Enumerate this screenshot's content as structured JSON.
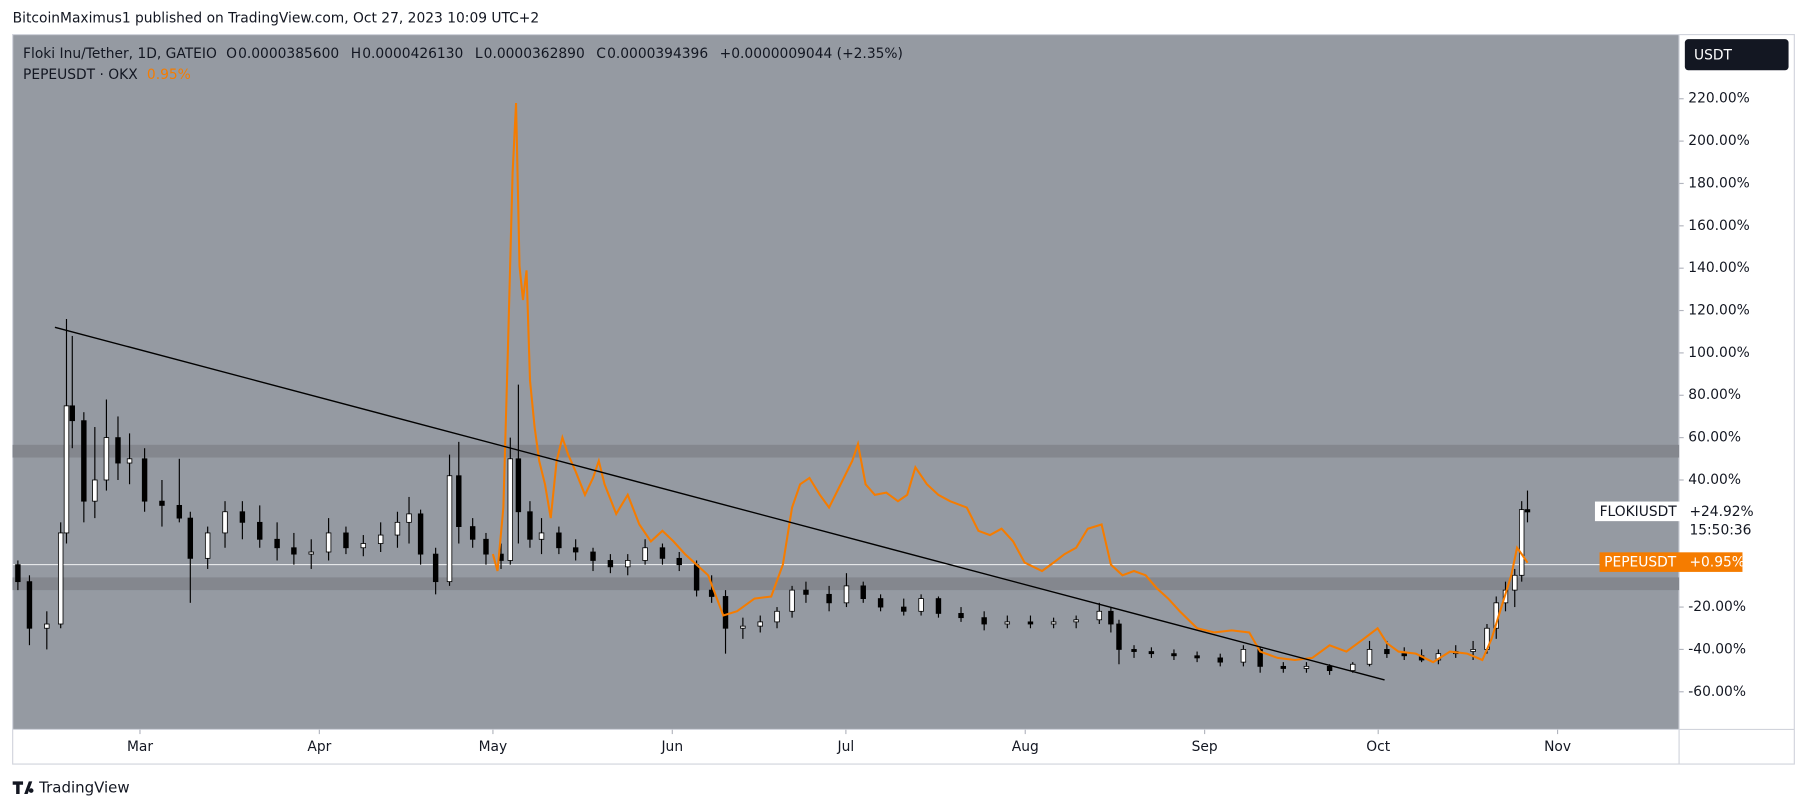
{
  "header": "BitcoinMaximus1 published on TradingView.com, Oct 27, 2023 10:09 UTC+2",
  "footer": "TradingView",
  "chart_data": {
    "type": "candlestick",
    "currency": "USDT",
    "legend": {
      "symbol": "Floki Inu/Tether, 1D, GATEIO",
      "items": [
        [
          "O",
          "0.0000385600"
        ],
        [
          "H",
          "0.0000426130"
        ],
        [
          "L",
          "0.0000362890"
        ],
        [
          "C",
          "0.0000394396"
        ]
      ],
      "change": "+0.0000009044 (+2.35%)",
      "compare": "PEPEUSDT · OKX",
      "compare_change": "0.95%"
    },
    "xlim": [
      38,
      326
    ],
    "xticks": [
      {
        "value": 60,
        "label": "Mar"
      },
      {
        "value": 91,
        "label": "Apr"
      },
      {
        "value": 121,
        "label": "May"
      },
      {
        "value": 152,
        "label": "Jun"
      },
      {
        "value": 182,
        "label": "Jul"
      },
      {
        "value": 213,
        "label": "Aug"
      },
      {
        "value": 244,
        "label": "Sep"
      },
      {
        "value": 274,
        "label": "Oct"
      },
      {
        "value": 305,
        "label": "Nov"
      }
    ],
    "ylim": [
      -77.8,
      250.3
    ],
    "yticks": [
      {
        "value": -60,
        "label": "-60.00%"
      },
      {
        "value": -40,
        "label": "-40.00%"
      },
      {
        "value": -20,
        "label": "-20.00%"
      },
      {
        "value": 40,
        "label": "40.00%"
      },
      {
        "value": 60,
        "label": "60.00%"
      },
      {
        "value": 80,
        "label": "80.00%"
      },
      {
        "value": 100,
        "label": "100.00%"
      },
      {
        "value": 120,
        "label": "120.00%"
      },
      {
        "value": 140,
        "label": "140.00%"
      },
      {
        "value": 160,
        "label": "160.00%"
      },
      {
        "value": 180,
        "label": "180.00%"
      },
      {
        "value": 200,
        "label": "200.00%"
      },
      {
        "value": 220,
        "label": "220.00%"
      }
    ],
    "zones": [
      {
        "from": 50.6,
        "to": 56.6
      },
      {
        "from": -12,
        "to": -6
      }
    ],
    "trendline": {
      "x": [
        45.3,
        275.1
      ],
      "y": [
        112.1,
        -54.4
      ]
    },
    "series": [
      {
        "name": "FLOKIUSDT",
        "type": "candlestick",
        "up_color": "#ffffff",
        "down_color": "#000000",
        "last_label": "+24.92%",
        "countdown": "15:50:36",
        "x": [
          38.9,
          40.9,
          43.9,
          46.3,
          47.3,
          48.3,
          50.3,
          52.2,
          54.2,
          56.2,
          58.2,
          60.8,
          63.8,
          66.8,
          68.7,
          71.7,
          74.7,
          77.7,
          80.7,
          83.7,
          86.6,
          89.6,
          92.6,
          95.6,
          98.6,
          101.6,
          104.5,
          106.5,
          108.5,
          111.1,
          113.5,
          115.1,
          117.5,
          119.8,
          122.4,
          124.0,
          125.4,
          127.4,
          129.4,
          132.4,
          135.3,
          138.3,
          141.3,
          144.3,
          147.3,
          150.3,
          153.2,
          156.2,
          158.8,
          161.2,
          164.2,
          167.2,
          170.1,
          172.7,
          175.1,
          179.1,
          182.1,
          185.0,
          188.0,
          192.0,
          195.0,
          198.0,
          201.9,
          205.9,
          209.9,
          213.9,
          217.9,
          221.8,
          225.8,
          227.8,
          229.2,
          231.8,
          234.8,
          238.7,
          242.7,
          246.7,
          250.7,
          253.6,
          257.6,
          261.6,
          265.6,
          269.6,
          272.5,
          275.5,
          278.5,
          281.5,
          284.4,
          287.4,
          290.4,
          292.8,
          294.4,
          296.0,
          297.6,
          298.8,
          299.8
        ],
        "open": [
          0,
          -8,
          -30,
          -28,
          15,
          75,
          68,
          30,
          40,
          60,
          48,
          50,
          30,
          28,
          22,
          3,
          15,
          25,
          20,
          12,
          8,
          5,
          6,
          15,
          8,
          10,
          14,
          20,
          24,
          5,
          -8,
          42,
          18,
          12,
          5,
          2,
          50,
          25,
          12,
          15,
          8,
          6,
          2,
          -1,
          2,
          8,
          3,
          0,
          -12,
          -15,
          -30,
          -29,
          -27,
          -22,
          -12,
          -14,
          -18,
          -10,
          -16,
          -20,
          -22,
          -16,
          -23,
          -25,
          -28,
          -27,
          -28,
          -27,
          -26,
          -22,
          -28,
          -40,
          -41,
          -42,
          -43,
          -44,
          -46,
          -40,
          -48,
          -49,
          -48,
          -50,
          -47,
          -40,
          -42,
          -43,
          -45,
          -42,
          -41,
          -40,
          -30,
          -18,
          -12,
          -5,
          26
        ],
        "high": [
          2,
          -5,
          -22,
          20,
          116,
          108,
          72,
          65,
          78,
          70,
          62,
          55,
          40,
          50,
          25,
          18,
          30,
          30,
          28,
          20,
          15,
          12,
          22,
          18,
          14,
          20,
          25,
          32,
          26,
          8,
          52,
          58,
          22,
          15,
          10,
          60,
          85,
          30,
          22,
          18,
          12,
          8,
          5,
          5,
          12,
          10,
          6,
          2,
          -5,
          -12,
          -25,
          -24,
          -20,
          -10,
          -8,
          -10,
          -4,
          -8,
          -14,
          -16,
          -14,
          -15,
          -20,
          -22,
          -24,
          -24,
          -25,
          -24,
          -18,
          -20,
          -26,
          -38,
          -39,
          -40,
          -41,
          -42,
          -38,
          -39,
          -46,
          -46,
          -47,
          -46,
          -36,
          -36,
          -39,
          -40,
          -40,
          -38,
          -36,
          -28,
          -15,
          -8,
          -2,
          30,
          35
        ],
        "low": [
          -12,
          -38,
          -40,
          -30,
          10,
          55,
          20,
          22,
          35,
          40,
          38,
          25,
          18,
          20,
          -18,
          -2,
          8,
          12,
          8,
          2,
          0,
          -2,
          2,
          5,
          4,
          6,
          8,
          10,
          0,
          -14,
          -10,
          10,
          8,
          0,
          -2,
          0,
          10,
          8,
          5,
          5,
          2,
          -3,
          -4,
          -5,
          0,
          0,
          -3,
          -15,
          -18,
          -42,
          -35,
          -32,
          -30,
          -25,
          -18,
          -22,
          -20,
          -18,
          -22,
          -24,
          -24,
          -25,
          -27,
          -31,
          -30,
          -30,
          -30,
          -30,
          -28,
          -32,
          -47,
          -44,
          -44,
          -45,
          -46,
          -48,
          -48,
          -51,
          -51,
          -51,
          -52,
          -51,
          -48,
          -44,
          -45,
          -46,
          -47,
          -44,
          -45,
          -42,
          -35,
          -22,
          -20,
          -8,
          20
        ],
        "close": [
          -8,
          -30,
          -28,
          15,
          75,
          68,
          30,
          40,
          60,
          48,
          50,
          30,
          28,
          22,
          3,
          15,
          25,
          20,
          12,
          8,
          5,
          6,
          15,
          8,
          10,
          14,
          20,
          24,
          5,
          -8,
          42,
          18,
          12,
          5,
          2,
          50,
          25,
          12,
          15,
          8,
          6,
          2,
          -1,
          2,
          8,
          3,
          0,
          -12,
          -15,
          -30,
          -29,
          -27,
          -22,
          -12,
          -14,
          -18,
          -10,
          -16,
          -20,
          -22,
          -16,
          -23,
          -25,
          -28,
          -27,
          -28,
          -27,
          -26,
          -22,
          -28,
          -40,
          -41,
          -42,
          -43,
          -44,
          -46,
          -40,
          -48,
          -49,
          -48,
          -50,
          -47,
          -40,
          -42,
          -43,
          -45,
          -42,
          -41,
          -40,
          -30,
          -18,
          -12,
          -5,
          26,
          24.92
        ]
      },
      {
        "name": "PEPEUSDT",
        "type": "line",
        "color": "#f57c00",
        "last_label": "+0.95%",
        "x": [
          121,
          121.8,
          122.8,
          123.6,
          124.4,
          125,
          125.6,
          126.2,
          126.8,
          127.4,
          128.2,
          129,
          130,
          131,
          132,
          133,
          134,
          135.3,
          136.9,
          138.3,
          139.3,
          140.3,
          142.3,
          144.3,
          146.3,
          148.3,
          150.3,
          152.2,
          154.2,
          156.2,
          158.2,
          160.8,
          163.2,
          166.2,
          169.1,
          171.1,
          172.7,
          174.1,
          175.7,
          177.5,
          179.1,
          181.1,
          183.1,
          184.1,
          185.4,
          187,
          189,
          191,
          192.6,
          194,
          196,
          198,
          200,
          202.9,
          204.9,
          206.9,
          208.9,
          210.9,
          212.9,
          215.9,
          217.9,
          219.8,
          221.8,
          223.8,
          226.2,
          227.8,
          229.8,
          231.8,
          233.8,
          235.7,
          237.7,
          239.7,
          242.7,
          245.7,
          248.7,
          251.7,
          253.6,
          256.6,
          259.6,
          262.6,
          265.6,
          268.5,
          271.5,
          273.9,
          275.5,
          277.5,
          280.5,
          283.5,
          286.4,
          289.4,
          292,
          293.6,
          295.4,
          297,
          298,
          298.8,
          299.8
        ],
        "values": [
          5,
          -3,
          27,
          103,
          185,
          218,
          141,
          125,
          139,
          87,
          65,
          49,
          38,
          22,
          49,
          60,
          52,
          44,
          33,
          41,
          49,
          38,
          24,
          33,
          19,
          11,
          16,
          11,
          5,
          0,
          -5,
          -24,
          -22,
          -16,
          -15,
          0,
          27,
          38,
          41,
          33,
          27,
          38,
          49,
          57,
          38,
          33,
          34,
          30,
          33,
          46,
          38,
          33,
          30,
          27,
          16,
          14,
          17,
          11,
          1,
          -3,
          1,
          5,
          8,
          17,
          19,
          0,
          -5,
          -3,
          -5,
          -11,
          -16,
          -22,
          -30,
          -32,
          -31,
          -32,
          -41,
          -44,
          -45,
          -44,
          -38,
          -41,
          -35,
          -30,
          -37,
          -41,
          -42,
          -46,
          -41,
          -42,
          -45,
          -35,
          -19,
          -5,
          8,
          5,
          0.95
        ]
      }
    ]
  }
}
